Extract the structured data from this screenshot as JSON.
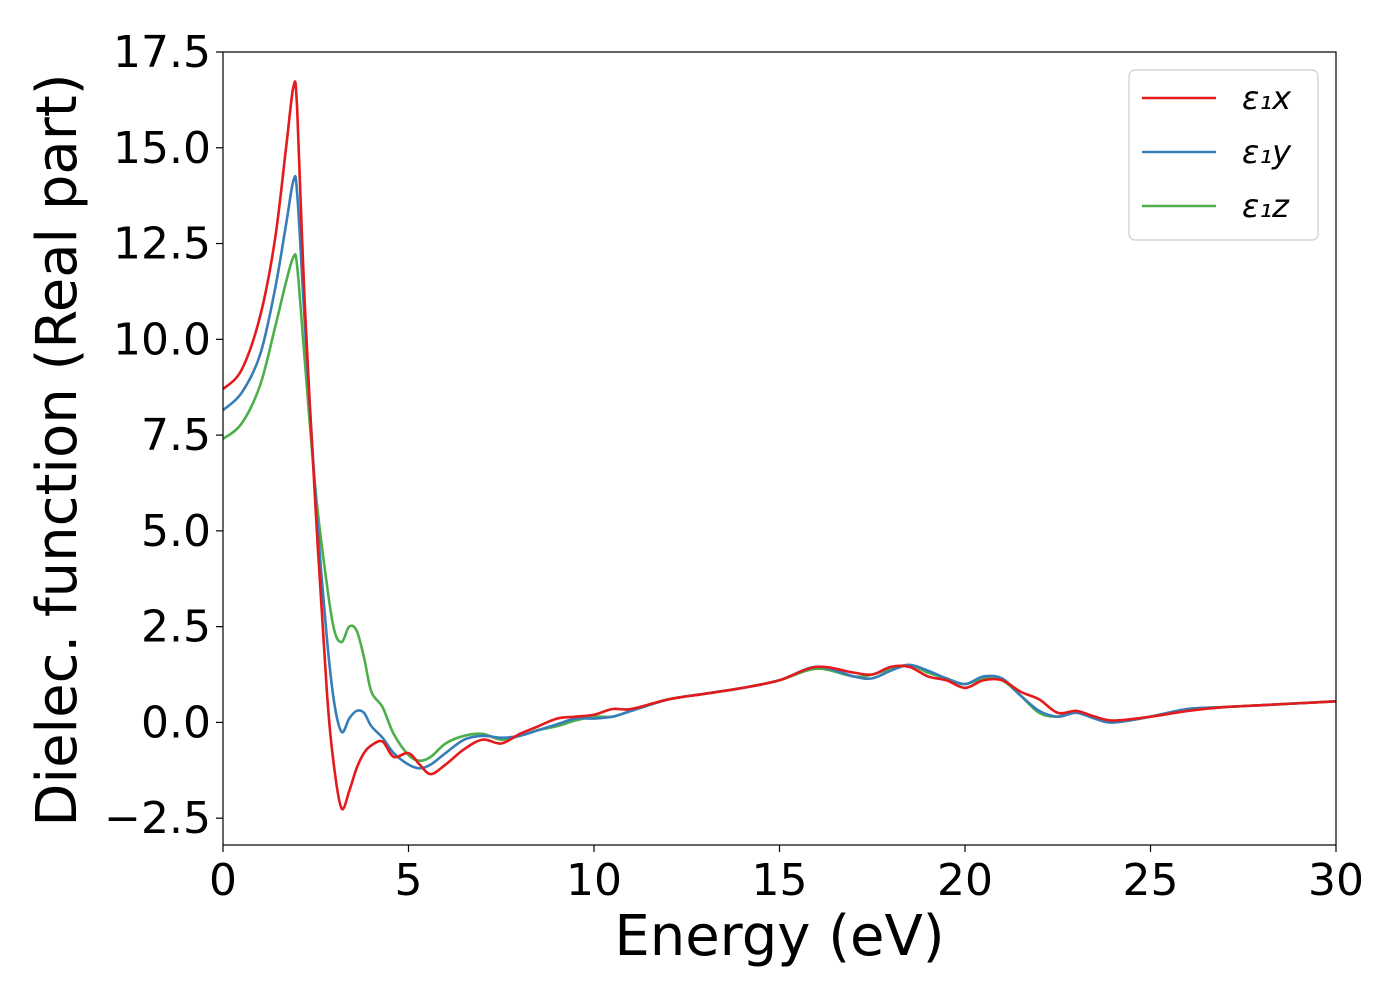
{
  "chart_data": {
    "type": "line",
    "xlabel": "Energy (eV)",
    "ylabel": "Dielec. function (Real part)",
    "xlim": [
      0,
      30
    ],
    "ylim": [
      -3.2,
      17.5
    ],
    "xticks": [
      {
        "value": 0,
        "label": "0"
      },
      {
        "value": 5,
        "label": "5"
      },
      {
        "value": 10,
        "label": "10"
      },
      {
        "value": 15,
        "label": "15"
      },
      {
        "value": 20,
        "label": "20"
      },
      {
        "value": 25,
        "label": "25"
      },
      {
        "value": 30,
        "label": "30"
      }
    ],
    "yticks": [
      {
        "value": -2.5,
        "label": "−2.5"
      },
      {
        "value": 0,
        "label": "0.0"
      },
      {
        "value": 2.5,
        "label": "2.5"
      },
      {
        "value": 5,
        "label": "5.0"
      },
      {
        "value": 7.5,
        "label": "7.5"
      },
      {
        "value": 10,
        "label": "10.0"
      },
      {
        "value": 12.5,
        "label": "12.5"
      },
      {
        "value": 15,
        "label": "15.0"
      },
      {
        "value": 17.5,
        "label": "17.5"
      }
    ],
    "grid": false,
    "legend_position": "top-right",
    "series": [
      {
        "name": "ε₁x",
        "color": "#e41a1c",
        "x": [
          0,
          0.5,
          1.0,
          1.4,
          1.7,
          1.9,
          2.0,
          2.2,
          2.5,
          2.8,
          3.0,
          3.2,
          3.4,
          3.6,
          3.8,
          4.0,
          4.3,
          4.6,
          5.0,
          5.3,
          5.6,
          6.0,
          6.5,
          7.0,
          7.5,
          8.0,
          8.5,
          9.0,
          9.5,
          10.0,
          10.5,
          11.0,
          12.0,
          13.0,
          14.0,
          15.0,
          16.0,
          17.0,
          17.5,
          18.0,
          18.5,
          19.0,
          19.5,
          20.0,
          20.5,
          21.0,
          21.5,
          22.0,
          22.5,
          23.0,
          23.5,
          24.0,
          25.0,
          26.0,
          27.0,
          28.0,
          29.0,
          30.0
        ],
        "y": [
          8.7,
          9.2,
          10.6,
          12.6,
          15.0,
          16.6,
          16.0,
          11.0,
          5.5,
          0.8,
          -1.2,
          -2.25,
          -1.8,
          -1.2,
          -0.8,
          -0.6,
          -0.5,
          -0.9,
          -0.8,
          -1.1,
          -1.35,
          -1.1,
          -0.7,
          -0.45,
          -0.55,
          -0.3,
          -0.1,
          0.1,
          0.15,
          0.2,
          0.35,
          0.35,
          0.6,
          0.75,
          0.9,
          1.1,
          1.45,
          1.3,
          1.25,
          1.45,
          1.45,
          1.2,
          1.1,
          0.9,
          1.1,
          1.1,
          0.8,
          0.6,
          0.25,
          0.3,
          0.15,
          0.05,
          0.15,
          0.3,
          0.4,
          0.45,
          0.5,
          0.55
        ]
      },
      {
        "name": "ε₁y",
        "color": "#377eb8",
        "x": [
          0,
          0.5,
          1.0,
          1.4,
          1.7,
          1.9,
          2.0,
          2.2,
          2.5,
          2.8,
          3.0,
          3.2,
          3.4,
          3.6,
          3.8,
          4.0,
          4.3,
          4.6,
          5.0,
          5.3,
          5.6,
          6.0,
          6.5,
          7.0,
          7.5,
          8.0,
          8.5,
          9.0,
          9.5,
          10.0,
          10.5,
          11.0,
          12.0,
          13.0,
          14.0,
          15.0,
          16.0,
          17.0,
          17.5,
          18.0,
          18.5,
          19.0,
          19.5,
          20.0,
          20.5,
          21.0,
          21.5,
          22.0,
          22.5,
          23.0,
          23.5,
          24.0,
          25.0,
          26.0,
          27.0,
          28.0,
          29.0,
          30.0
        ],
        "y": [
          8.15,
          8.6,
          9.6,
          11.3,
          13.0,
          14.15,
          13.8,
          10.5,
          5.8,
          2.2,
          0.5,
          -0.25,
          0.1,
          0.3,
          0.25,
          -0.1,
          -0.4,
          -0.8,
          -1.1,
          -1.2,
          -1.1,
          -0.8,
          -0.45,
          -0.35,
          -0.4,
          -0.35,
          -0.2,
          -0.05,
          0.1,
          0.1,
          0.15,
          0.3,
          0.6,
          0.75,
          0.9,
          1.1,
          1.45,
          1.2,
          1.15,
          1.35,
          1.5,
          1.35,
          1.15,
          1.0,
          1.2,
          1.15,
          0.7,
          0.3,
          0.15,
          0.25,
          0.1,
          0.0,
          0.15,
          0.35,
          0.4,
          0.45,
          0.5,
          0.55
        ]
      },
      {
        "name": "ε₁z",
        "color": "#4daf4a",
        "x": [
          0,
          0.5,
          1.0,
          1.4,
          1.7,
          1.9,
          2.0,
          2.2,
          2.5,
          2.8,
          3.0,
          3.2,
          3.4,
          3.6,
          3.8,
          4.0,
          4.3,
          4.6,
          5.0,
          5.3,
          5.6,
          6.0,
          6.5,
          7.0,
          7.5,
          8.0,
          8.5,
          9.0,
          9.5,
          10.0,
          10.5,
          11.0,
          12.0,
          13.0,
          14.0,
          15.0,
          16.0,
          17.0,
          17.5,
          18.0,
          18.5,
          19.0,
          19.5,
          20.0,
          20.5,
          21.0,
          21.5,
          22.0,
          22.5,
          23.0,
          23.5,
          24.0,
          25.0,
          26.0,
          27.0,
          28.0,
          29.0,
          30.0
        ],
        "y": [
          7.4,
          7.8,
          8.8,
          10.3,
          11.5,
          12.15,
          11.9,
          9.5,
          6.0,
          3.6,
          2.4,
          2.1,
          2.5,
          2.4,
          1.7,
          0.8,
          0.4,
          -0.3,
          -0.85,
          -1.0,
          -0.9,
          -0.55,
          -0.35,
          -0.3,
          -0.45,
          -0.35,
          -0.2,
          -0.1,
          0.05,
          0.15,
          0.15,
          0.3,
          0.6,
          0.75,
          0.9,
          1.1,
          1.4,
          1.2,
          1.25,
          1.4,
          1.5,
          1.3,
          1.15,
          1.0,
          1.15,
          1.1,
          0.7,
          0.25,
          0.15,
          0.3,
          0.1,
          0.0,
          0.15,
          0.35,
          0.4,
          0.45,
          0.5,
          0.55
        ]
      }
    ]
  }
}
